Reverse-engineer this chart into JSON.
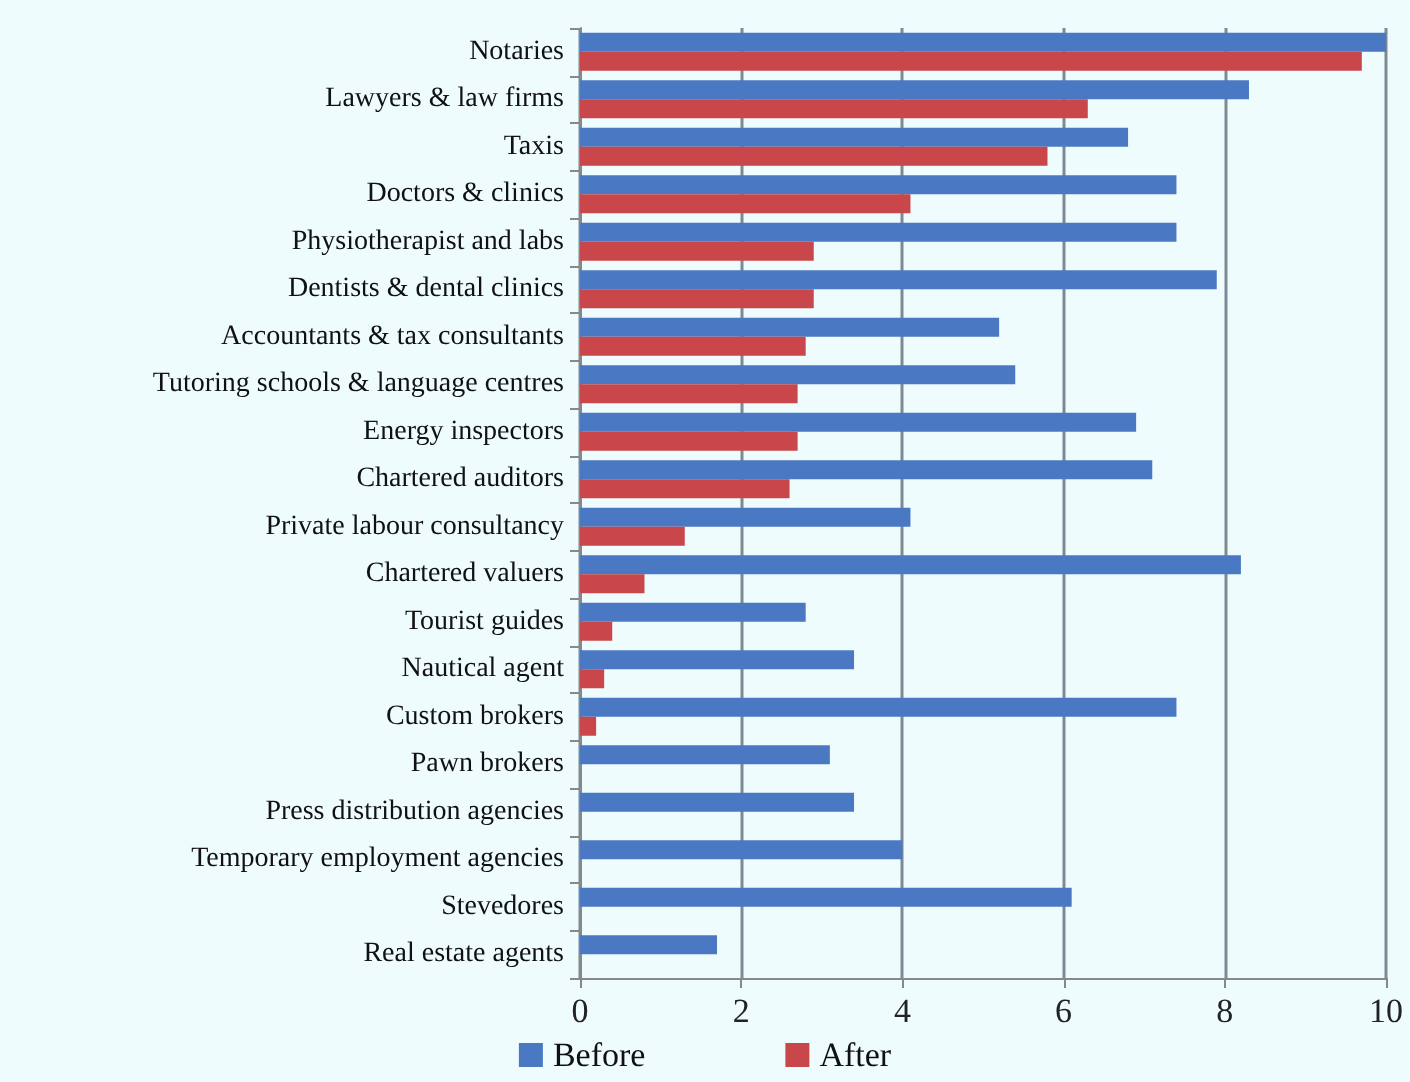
{
  "chart_data": {
    "type": "bar",
    "orientation": "horizontal",
    "categories": [
      "Notaries",
      "Lawyers & law firms",
      "Taxis",
      "Doctors & clinics",
      "Physiotherapist and labs",
      "Dentists & dental clinics",
      "Accountants & tax consultants",
      "Tutoring schools & language centres",
      "Energy inspectors",
      "Chartered auditors",
      "Private labour consultancy",
      "Chartered valuers",
      "Tourist guides",
      "Nautical agent",
      "Custom brokers",
      "Pawn brokers",
      "Press distribution agencies",
      "Temporary employment agencies",
      "Stevedores",
      "Real estate agents"
    ],
    "series": [
      {
        "name": "Before",
        "color": "#4a78c2",
        "values": [
          10.0,
          8.3,
          6.8,
          7.4,
          7.4,
          7.9,
          5.2,
          5.4,
          6.9,
          7.1,
          4.1,
          8.2,
          2.8,
          3.4,
          7.4,
          3.1,
          3.4,
          4.0,
          6.1,
          1.7
        ]
      },
      {
        "name": "After",
        "color": "#c9464a",
        "values": [
          9.7,
          6.3,
          5.8,
          4.1,
          2.9,
          2.9,
          2.8,
          2.7,
          2.7,
          2.6,
          1.3,
          0.8,
          0.4,
          0.3,
          0.2,
          null,
          null,
          null,
          null,
          null
        ]
      }
    ],
    "xlim": [
      0,
      10
    ],
    "xticks": [
      0,
      2,
      4,
      6,
      8,
      10
    ],
    "grid": "x",
    "legend": "bottom"
  }
}
